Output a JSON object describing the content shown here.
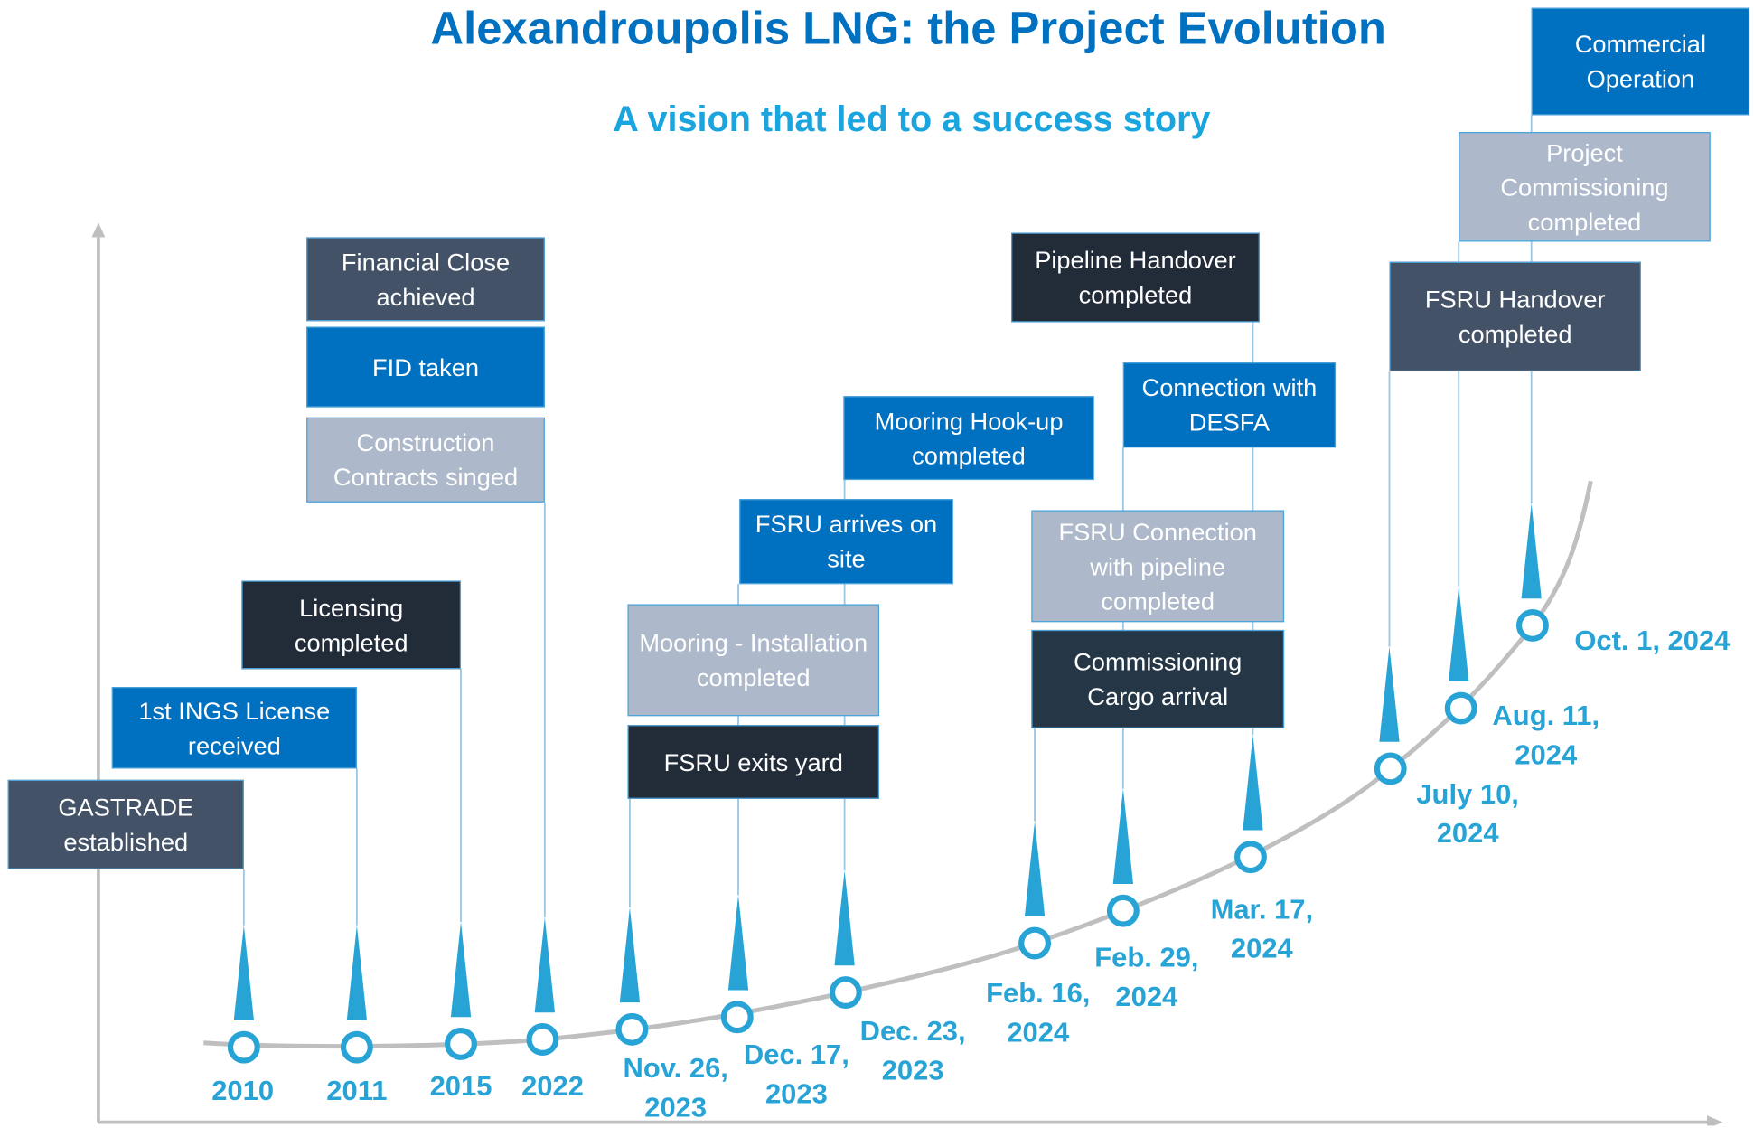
{
  "title": "Alexandroupolis LNG: the Project Evolution",
  "subtitle": "A vision that led to a success story",
  "milestones": [
    "2010",
    "2011",
    "2015",
    "2022",
    "Nov. 26, 2023",
    "Dec. 17, 2023",
    "Dec. 23, 2023",
    "Feb. 16, 2024",
    "Feb. 29, 2024",
    "Mar. 17, 2024",
    "July 10, 2024",
    "Aug. 11, 2024",
    "Oct. 1, 2024"
  ],
  "events": [
    "GASTRADE established",
    "1st INGS License received",
    "Licensing completed",
    "Financial Close achieved",
    "FID taken",
    "Construction Contracts singed",
    "FSRU exits yard",
    "Mooring - Installation completed",
    "FSRU arrives on site",
    "Mooring Hook-up completed",
    "Commissioning Cargo arrival",
    "FSRU Connection with pipeline completed",
    "Connection with DESFA",
    "Pipeline Handover completed",
    "FSRU Handover completed",
    "Project Commissioning completed",
    "Commercial Operation"
  ]
}
